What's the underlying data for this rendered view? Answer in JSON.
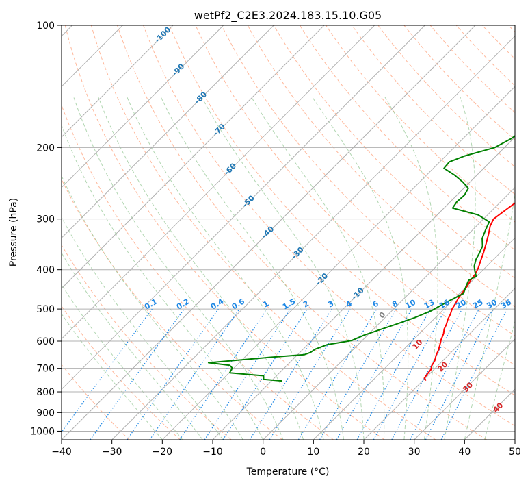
{
  "chart_data": {
    "type": "line",
    "title": "wetPf2_C2E3.2024.183.15.10.G05",
    "xlabel": "Temperature (°C)",
    "ylabel": "Pressure (hPa)",
    "xlim": [
      -40,
      50
    ],
    "ylim": [
      1050,
      100
    ],
    "y_scale": "log",
    "grid": true,
    "x_ticks": [
      "−40",
      "−30",
      "−20",
      "−10",
      "0",
      "10",
      "20",
      "30",
      "40",
      "50"
    ],
    "y_ticks": [
      {
        "p": 100,
        "label": "100"
      },
      {
        "p": 200,
        "label": "200"
      },
      {
        "p": 300,
        "label": "300"
      },
      {
        "p": 400,
        "label": "400"
      },
      {
        "p": 500,
        "label": "500"
      },
      {
        "p": 600,
        "label": "600"
      },
      {
        "p": 700,
        "label": "700"
      },
      {
        "p": 800,
        "label": "800"
      },
      {
        "p": 900,
        "label": "900"
      },
      {
        "p": 1000,
        "label": "1000"
      }
    ],
    "series": [
      {
        "role": "temperature",
        "color": "#ff0000",
        "points": [
          [
            20.6,
            750
          ],
          [
            19.8,
            740
          ],
          [
            19.6,
            725
          ],
          [
            19.4,
            705
          ],
          [
            18.8,
            690
          ],
          [
            18.4,
            670
          ],
          [
            17.6,
            650
          ],
          [
            17.0,
            630
          ],
          [
            16.1,
            608
          ],
          [
            15.5,
            595
          ],
          [
            14.8,
            575
          ],
          [
            14.0,
            560
          ],
          [
            13.5,
            545
          ],
          [
            12.8,
            530
          ],
          [
            12.3,
            515
          ],
          [
            11.6,
            500
          ],
          [
            11.2,
            485
          ],
          [
            10.7,
            470
          ],
          [
            10.4,
            455
          ],
          [
            10.1,
            440
          ],
          [
            9.6,
            425
          ],
          [
            9.3,
            410
          ],
          [
            8.6,
            395
          ],
          [
            7.7,
            380
          ],
          [
            6.6,
            362
          ],
          [
            5.4,
            345
          ],
          [
            4.1,
            328
          ],
          [
            2.7,
            312
          ],
          [
            2.0,
            300
          ],
          [
            2.6,
            285
          ],
          [
            3.3,
            270
          ],
          [
            3.8,
            255
          ],
          [
            5.4,
            242
          ],
          [
            5.9,
            232
          ],
          [
            6.3,
            218
          ],
          [
            6.3,
            205
          ],
          [
            6.2,
            190
          ],
          [
            6.8,
            178
          ],
          [
            7.6,
            165
          ],
          [
            7.9,
            153
          ],
          [
            7.5,
            145
          ],
          [
            7.6,
            137
          ],
          [
            9.0,
            128
          ],
          [
            12.0,
            120
          ],
          [
            13.5,
            113
          ],
          [
            14.1,
            107
          ],
          [
            14.6,
            100
          ]
        ]
      },
      {
        "role": "dewpoint",
        "color": "#008000",
        "points": [
          [
            -7.9,
            752
          ],
          [
            -11.9,
            745
          ],
          [
            -12.2,
            738
          ],
          [
            -12.6,
            730
          ],
          [
            -19.9,
            718
          ],
          [
            -20.2,
            705
          ],
          [
            -20.4,
            698
          ],
          [
            -21.4,
            688
          ],
          [
            -26.1,
            678
          ],
          [
            -15.2,
            658
          ],
          [
            -8.7,
            648
          ],
          [
            -7.9,
            640
          ],
          [
            -7.6,
            628
          ],
          [
            -6.1,
            612
          ],
          [
            -2.1,
            598
          ],
          [
            -0.7,
            580
          ],
          [
            1.4,
            562
          ],
          [
            3.5,
            545
          ],
          [
            5.9,
            525
          ],
          [
            7.8,
            505
          ],
          [
            9.1,
            482
          ],
          [
            10.8,
            458
          ],
          [
            9.8,
            438
          ],
          [
            9.2,
            425
          ],
          [
            9.9,
            415
          ],
          [
            8.8,
            405
          ],
          [
            7.5,
            392
          ],
          [
            6.5,
            377
          ],
          [
            6.0,
            365
          ],
          [
            5.2,
            350
          ],
          [
            3.6,
            335
          ],
          [
            2.5,
            318
          ],
          [
            1.7,
            305
          ],
          [
            -1.9,
            293
          ],
          [
            -8.3,
            282
          ],
          [
            -8.7,
            272
          ],
          [
            -8.5,
            262
          ],
          [
            -9.1,
            252
          ],
          [
            -11.5,
            243
          ],
          [
            -14.4,
            234
          ],
          [
            -17.9,
            225
          ],
          [
            -18.1,
            217
          ],
          [
            -16.3,
            210
          ],
          [
            -11.9,
            200
          ],
          [
            -10.4,
            190
          ],
          [
            -9.7,
            180
          ],
          [
            -10.8,
            170
          ],
          [
            -13.8,
            160
          ],
          [
            -15.0,
            152
          ],
          [
            -12.0,
            146
          ],
          [
            -7.8,
            140
          ],
          [
            -6.0,
            133
          ],
          [
            -5.1,
            125
          ],
          [
            -4.6,
            115
          ],
          [
            -4.5,
            108
          ],
          [
            -1.5,
            103
          ],
          [
            1.0,
            100
          ]
        ]
      }
    ],
    "isotherm_labels": [
      "-100",
      "-90",
      "-80",
      "-70",
      "-60",
      "-50",
      "-40",
      "-30",
      "-20",
      "-10"
    ],
    "mixing_ratio_labels": [
      "0.1",
      "0.2",
      "0.4",
      "0.6",
      "1",
      "1.5",
      "2",
      "3",
      "4",
      "6",
      "8",
      "10",
      "13",
      "16",
      "20",
      "25",
      "30",
      "36"
    ],
    "moist_adiabat_labels": [
      "0",
      "10",
      "20",
      "30",
      "40"
    ],
    "colors": {
      "temperature": "#ff0000",
      "dewpoint": "#008000",
      "isotherm_label": "#1f77b4",
      "mixing_ratio": "#1e88e5",
      "moist_adiabat_label": "#d62728",
      "dry_adiabat": "#ffa07a",
      "moist_adiabat": "#90c590",
      "grid": "#b0b0b0"
    }
  }
}
